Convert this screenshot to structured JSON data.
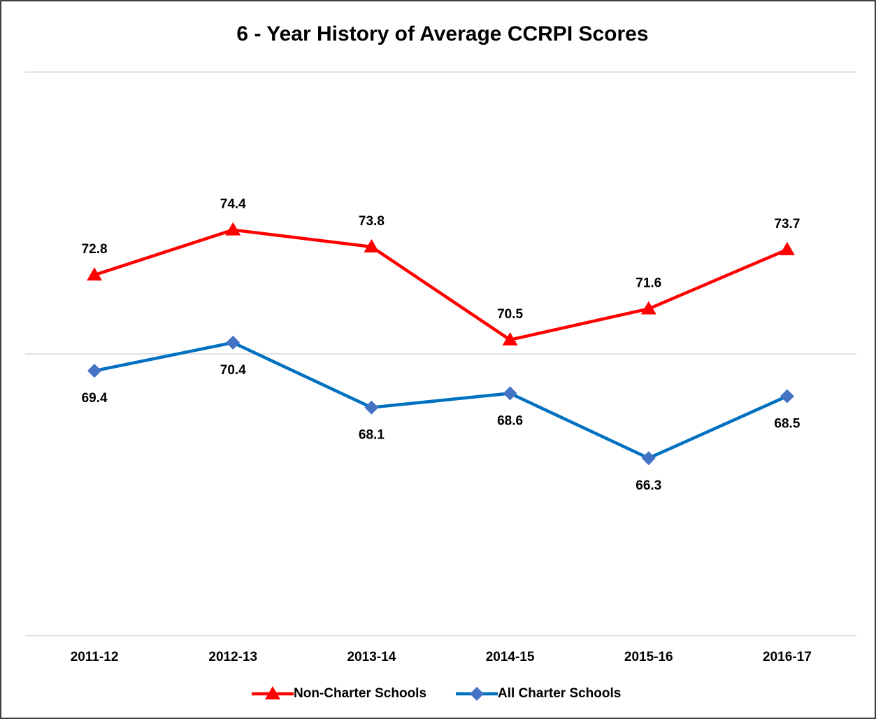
{
  "chart_data": {
    "type": "line",
    "title": "6 - Year History of Average CCRPI Scores",
    "categories": [
      "2011-12",
      "2012-13",
      "2013-14",
      "2014-15",
      "2015-16",
      "2016-17"
    ],
    "series": [
      {
        "name": "Non-Charter Schools",
        "color": "#ff0000",
        "marker": "triangle",
        "label_position": "above",
        "values": [
          72.8,
          74.4,
          73.8,
          70.5,
          71.6,
          73.7
        ]
      },
      {
        "name": "All Charter Schools",
        "color": "#0070c0",
        "marker_color": "#4472c4",
        "marker": "diamond",
        "label_position": "below",
        "values": [
          69.4,
          70.4,
          68.1,
          68.6,
          66.3,
          68.5
        ]
      }
    ],
    "ylim": [
      60,
      80
    ],
    "yticks": [
      60,
      70,
      80
    ],
    "grid": true,
    "legend": "bottom"
  }
}
